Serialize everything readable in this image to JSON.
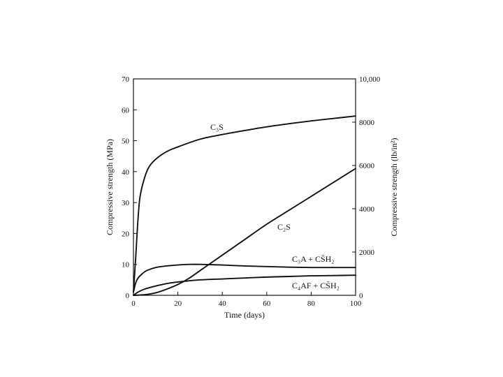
{
  "chart_data": {
    "type": "line",
    "xlabel": "Time (days)",
    "ylabel": "Compressive strength (MPa)",
    "y2label": "Compressive strength (lb/in²)",
    "xlim": [
      0,
      100
    ],
    "ylim": [
      0,
      70
    ],
    "y2lim": [
      0,
      10000
    ],
    "x_ticks": [
      0,
      20,
      40,
      60,
      80,
      100
    ],
    "y_ticks": [
      0,
      10,
      20,
      30,
      40,
      50,
      60,
      70
    ],
    "y2_ticks": [
      {
        "value": 0,
        "label": "0"
      },
      {
        "value": 2000,
        "label": "2000"
      },
      {
        "value": 4000,
        "label": "4000"
      },
      {
        "value": 6000,
        "label": "6000"
      },
      {
        "value": 8000,
        "label": "8000"
      },
      {
        "value": 10000,
        "label": "10,000"
      }
    ],
    "grid": false,
    "series": [
      {
        "name": "C₃S",
        "x": [
          0,
          1,
          2,
          3,
          5,
          7,
          10,
          15,
          20,
          30,
          40,
          50,
          60,
          70,
          80,
          90,
          100
        ],
        "values": [
          1,
          12,
          24,
          32,
          38,
          41.5,
          44,
          46.5,
          48,
          50.5,
          52,
          53.3,
          54.5,
          55.5,
          56.4,
          57.2,
          58
        ]
      },
      {
        "name": "C₂S",
        "x": [
          0,
          5,
          10,
          15,
          20,
          25,
          30,
          40,
          50,
          60,
          70,
          80,
          90,
          100
        ],
        "values": [
          0,
          0.2,
          0.8,
          2,
          3.5,
          5.5,
          8,
          13,
          18,
          23,
          27.5,
          32,
          36.5,
          41
        ]
      },
      {
        "name": "C₃A + CS̄H₂",
        "x": [
          0,
          1,
          2,
          4,
          6,
          10,
          15,
          20,
          25,
          30,
          40,
          50,
          60,
          70,
          80,
          90,
          100
        ],
        "values": [
          1,
          4,
          5.5,
          7,
          8,
          9,
          9.5,
          9.8,
          10,
          10,
          9.8,
          9.5,
          9.3,
          9.1,
          9,
          9,
          9
        ]
      },
      {
        "name": "C₄AF + CS̄H₂",
        "x": [
          0,
          2,
          5,
          10,
          15,
          20,
          30,
          40,
          50,
          60,
          70,
          80,
          90,
          100
        ],
        "values": [
          0,
          1,
          2,
          3,
          3.8,
          4.3,
          5,
          5.3,
          5.6,
          5.9,
          6.1,
          6.3,
          6.4,
          6.5
        ]
      }
    ]
  }
}
